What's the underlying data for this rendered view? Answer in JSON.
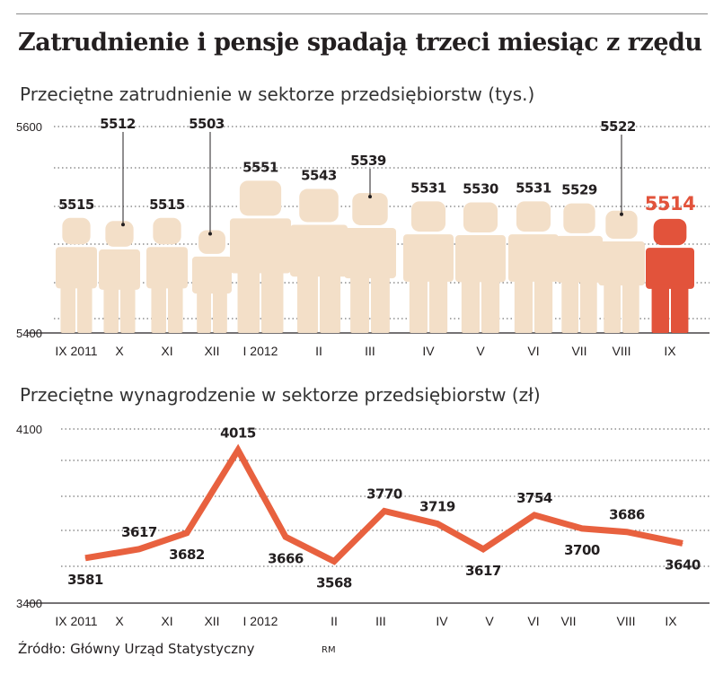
{
  "title": "Zatrudnienie i pensje spadają trzeci miesiąc z rzędu",
  "colors": {
    "figure": "#f3dfc8",
    "highlight": "#e2533b",
    "line": "#e8613f",
    "text": "#231f20",
    "grid": "#555555"
  },
  "chart_data": [
    {
      "type": "pictogram-bar",
      "title": "Przeciętne zatrudnienie w sektorze przedsiębiorstw (tys.)",
      "unit": "tys.",
      "ylim": [
        5400,
        5600
      ],
      "y_ticks": [
        "5600",
        "5400"
      ],
      "grid": true,
      "categories": [
        "IX 2011",
        "X",
        "XI",
        "XII",
        "I 2012",
        "II",
        "III",
        "IV",
        "V",
        "VI",
        "VII",
        "VIII",
        "IX"
      ],
      "values": [
        5515,
        5512,
        5515,
        5503,
        5551,
        5543,
        5539,
        5531,
        5530,
        5531,
        5529,
        5522,
        5514
      ],
      "labels": [
        "5515",
        "5512",
        "5515",
        "5503",
        "5551",
        "5543",
        "5539",
        "5531",
        "5530",
        "5531",
        "5529",
        "5522",
        "5514"
      ],
      "highlight_index": 12
    },
    {
      "type": "line",
      "title": "Przeciętne wynagrodzenie w sektorze przedsiębiorstw (zł)",
      "unit": "zł",
      "ylim": [
        3400,
        4100
      ],
      "y_ticks": [
        "4100",
        "3400"
      ],
      "grid": true,
      "categories": [
        "IX 2011",
        "X",
        "XI",
        "XII",
        "I 2012",
        "II",
        "III",
        "IV",
        "V",
        "VI",
        "VII",
        "VIII",
        "IX"
      ],
      "values": [
        3581,
        3617,
        3682,
        4015,
        3666,
        3568,
        3770,
        3719,
        3617,
        3754,
        3700,
        3686,
        3640
      ],
      "labels": [
        "3581",
        "3617",
        "3682",
        "4015",
        "3666",
        "3568",
        "3770",
        "3719",
        "3617",
        "3754",
        "3700",
        "3686",
        "3640"
      ]
    }
  ],
  "source": "Źródło: Główny Urząd Statystyczny",
  "credit": "RM"
}
